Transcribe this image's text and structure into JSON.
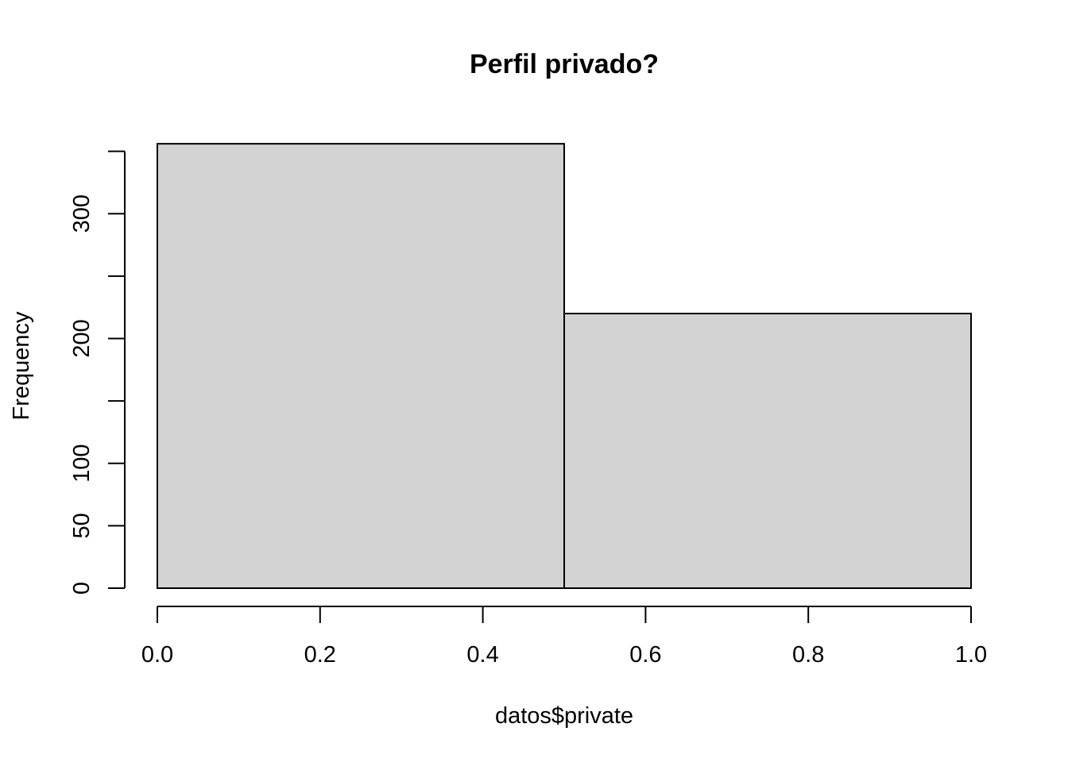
{
  "chart_data": {
    "type": "bar",
    "subtype": "histogram",
    "title": "Perfil privado?",
    "xlabel": "datos$private",
    "ylabel": "Frequency",
    "bins": [
      {
        "start": 0.0,
        "end": 0.5,
        "value": 356
      },
      {
        "start": 0.5,
        "end": 1.0,
        "value": 220
      }
    ],
    "xlim": [
      0.0,
      1.0
    ],
    "ylim": [
      0,
      351
    ],
    "x_ticks": [
      0.0,
      0.2,
      0.4,
      0.6,
      0.8,
      1.0
    ],
    "x_tick_labels": [
      "0.0",
      "0.2",
      "0.4",
      "0.6",
      "0.8",
      "1.0"
    ],
    "y_ticks": [
      0,
      50,
      100,
      150,
      200,
      250,
      300,
      350
    ],
    "y_tick_labels": [
      "0",
      "50",
      "100",
      "",
      "200",
      "",
      "300",
      ""
    ],
    "grid": false,
    "legend": "none",
    "colors": {
      "bar_fill": "#d3d3d3",
      "bar_stroke": "#000000",
      "axis": "#000000",
      "background": "#ffffff"
    }
  }
}
